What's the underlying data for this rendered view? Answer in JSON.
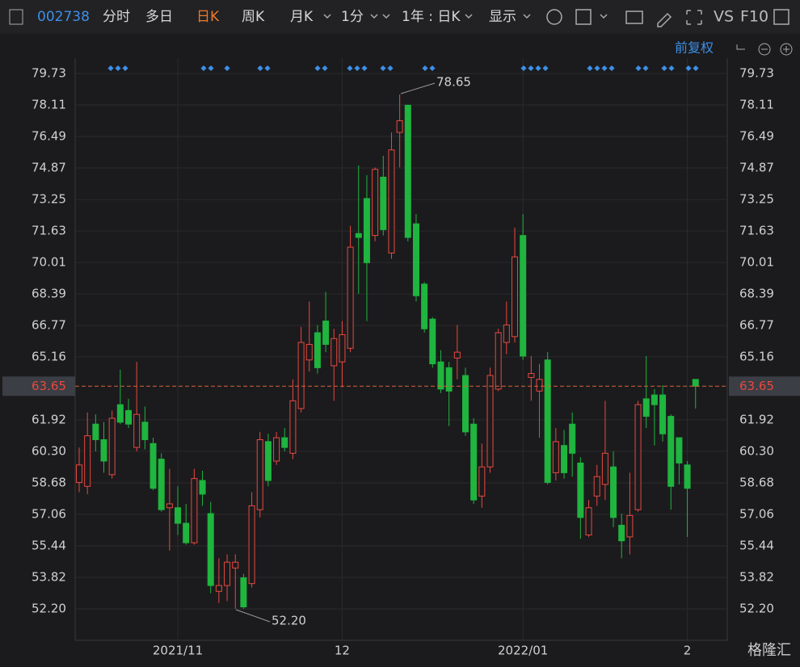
{
  "toolbar": {
    "code": "002738",
    "tabs": [
      "分时",
      "多日",
      "日K",
      "周K",
      "月K",
      "1分",
      "1年 : 日K",
      "显示"
    ],
    "vs": "VS",
    "f10": "F10",
    "adjust": "前复权",
    "watermark": "格隆汇"
  },
  "chart_data": {
    "type": "candlestick",
    "categories": [
      null,
      null,
      null,
      null,
      null,
      null,
      null,
      null,
      null,
      null,
      null,
      null,
      "2021/11",
      null,
      null,
      null,
      null,
      null,
      null,
      null,
      null,
      null,
      null,
      null,
      null,
      null,
      null,
      null,
      null,
      null,
      null,
      null,
      "12",
      null,
      null,
      null,
      null,
      null,
      null,
      null,
      null,
      null,
      null,
      null,
      null,
      null,
      null,
      null,
      null,
      null,
      null,
      null,
      null,
      null,
      "2022/01",
      null,
      null,
      null,
      null,
      null,
      null,
      null,
      null,
      null,
      null,
      null,
      null,
      null,
      null,
      null,
      null,
      null,
      null,
      null,
      "2",
      null
    ],
    "open": [
      58.7,
      58.5,
      61.7,
      60.9,
      59.1,
      62.7,
      62.4,
      60.5,
      61.8,
      60.7,
      59.9,
      57.4,
      57.4,
      56.6,
      55.6,
      58.8,
      57.1,
      53.1,
      53.4,
      54.3,
      53.8,
      53.5,
      57.3,
      60.8,
      59.8,
      61.0,
      60.2,
      62.5,
      65.0,
      66.4,
      67.0,
      64.7,
      64.9,
      65.6,
      71.5,
      73.3,
      71.4,
      74.4,
      70.5,
      76.7,
      78.1,
      72.0,
      68.9,
      67.1,
      64.9,
      64.6,
      65.1,
      64.2,
      61.7,
      58.0,
      59.5,
      63.5,
      65.9,
      66.2,
      71.4,
      64.1,
      63.4,
      65.0,
      59.2,
      60.6,
      61.7,
      59.7,
      56.0,
      58.0,
      58.6,
      59.5,
      56.5,
      55.9,
      57.3,
      63.0,
      63.2,
      63.2,
      62.1,
      61.0,
      59.6,
      64.0
    ],
    "high": [
      60.5,
      62.3,
      62.2,
      61.8,
      62.4,
      64.5,
      63.0,
      64.9,
      62.6,
      61.0,
      60.2,
      59.4,
      58.5,
      57.6,
      59.4,
      59.3,
      57.7,
      54.8,
      55.0,
      55.0,
      54.0,
      58.2,
      61.3,
      61.2,
      61.3,
      61.5,
      64.0,
      66.7,
      68.0,
      66.8,
      68.5,
      66.6,
      67.0,
      71.9,
      75.0,
      74.5,
      74.9,
      75.5,
      76.7,
      78.65,
      78.1,
      72.5,
      69.0,
      67.2,
      65.5,
      64.9,
      66.8,
      64.6,
      62.0,
      60.7,
      64.6,
      66.6,
      68.0,
      71.8,
      72.5,
      65.2,
      64.8,
      65.4,
      61.5,
      61.4,
      62.3,
      60.0,
      57.8,
      59.6,
      62.9,
      60.3,
      57.1,
      59.2,
      62.9,
      65.2,
      63.5,
      63.7,
      62.2,
      61.0,
      59.8,
      64.0
    ],
    "low": [
      58.2,
      58.1,
      60.3,
      59.2,
      58.9,
      61.7,
      61.5,
      60.3,
      60.4,
      58.3,
      57.2,
      55.2,
      56.0,
      55.5,
      55.5,
      57.5,
      53.0,
      52.5,
      52.6,
      52.2,
      52.2,
      53.3,
      56.9,
      58.5,
      59.6,
      60.3,
      59.9,
      62.3,
      64.4,
      64.3,
      65.4,
      62.9,
      63.6,
      65.4,
      68.4,
      67.0,
      71.1,
      71.4,
      70.2,
      74.9,
      71.1,
      68.0,
      66.4,
      64.6,
      63.3,
      61.6,
      64.0,
      61.1,
      57.6,
      57.4,
      59.2,
      63.4,
      65.3,
      65.9,
      65.0,
      62.9,
      61.0,
      58.6,
      58.8,
      58.9,
      59.0,
      55.8,
      55.9,
      57.5,
      57.8,
      56.4,
      54.8,
      55.0,
      57.2,
      61.5,
      60.6,
      60.8,
      57.3,
      58.6,
      55.9,
      62.5
    ],
    "close": [
      59.6,
      61.1,
      60.9,
      59.8,
      62.0,
      61.8,
      61.7,
      62.2,
      60.9,
      58.4,
      57.3,
      57.6,
      56.6,
      55.6,
      58.9,
      58.1,
      53.4,
      53.4,
      54.6,
      54.6,
      52.3,
      57.5,
      60.9,
      58.8,
      61.0,
      60.5,
      62.9,
      65.9,
      65.8,
      64.6,
      65.8,
      66.1,
      66.3,
      70.8,
      71.3,
      70.0,
      74.8,
      71.7,
      75.8,
      77.3,
      71.3,
      68.3,
      66.6,
      64.8,
      63.5,
      63.4,
      65.4,
      61.3,
      57.8,
      59.5,
      64.2,
      66.4,
      66.8,
      70.3,
      65.2,
      64.3,
      64.0,
      58.7,
      60.8,
      59.2,
      60.2,
      56.9,
      57.4,
      59.0,
      60.2,
      56.9,
      55.7,
      57.0,
      62.7,
      62.1,
      62.7,
      61.2,
      58.5,
      59.7,
      58.4,
      63.65
    ],
    "ylim": [
      50.58,
      80.52
    ],
    "yticks": [
      79.73,
      78.11,
      76.49,
      74.87,
      73.25,
      71.63,
      70.01,
      68.39,
      66.77,
      65.16,
      61.92,
      {
        "value": 60.3,
        "label": "60.30"
      },
      58.68,
      57.06,
      55.44,
      53.82,
      {
        "value": 52.2,
        "label": "52.20"
      }
    ],
    "last_price": 63.65,
    "annotations": [
      "78.65",
      "52.20"
    ],
    "up_color": "#e8483f",
    "down_color": "#1fb53f",
    "grid": true
  }
}
